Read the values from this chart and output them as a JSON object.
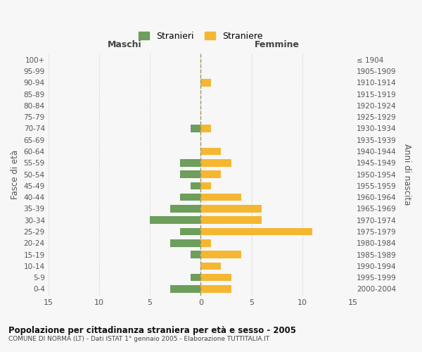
{
  "age_groups": [
    "0-4",
    "5-9",
    "10-14",
    "15-19",
    "20-24",
    "25-29",
    "30-34",
    "35-39",
    "40-44",
    "45-49",
    "50-54",
    "55-59",
    "60-64",
    "65-69",
    "70-74",
    "75-79",
    "80-84",
    "85-89",
    "90-94",
    "95-99",
    "100+"
  ],
  "birth_years": [
    "2000-2004",
    "1995-1999",
    "1990-1994",
    "1985-1989",
    "1980-1984",
    "1975-1979",
    "1970-1974",
    "1965-1969",
    "1960-1964",
    "1955-1959",
    "1950-1954",
    "1945-1949",
    "1940-1944",
    "1935-1939",
    "1930-1934",
    "1925-1929",
    "1920-1924",
    "1915-1919",
    "1910-1914",
    "1905-1909",
    "≤ 1904"
  ],
  "maschi": [
    3,
    1,
    0,
    1,
    3,
    2,
    5,
    3,
    2,
    1,
    2,
    2,
    0,
    0,
    1,
    0,
    0,
    0,
    0,
    0,
    0
  ],
  "femmine": [
    3,
    3,
    2,
    4,
    1,
    11,
    6,
    6,
    4,
    1,
    2,
    3,
    2,
    0,
    1,
    0,
    0,
    0,
    1,
    0,
    0
  ],
  "color_maschi": "#6d9e5b",
  "color_femmine": "#f5b731",
  "xlim": 15,
  "title": "Popolazione per cittadinanza straniera per età e sesso - 2005",
  "subtitle": "COMUNE DI NORMA (LT) - Dati ISTAT 1° gennaio 2005 - Elaborazione TUTTITALIA.IT",
  "ylabel_left": "Fasce di età",
  "ylabel_right": "Anni di nascita",
  "xlabel_left": "Maschi",
  "xlabel_right": "Femmine",
  "legend_maschi": "Stranieri",
  "legend_femmine": "Straniere",
  "bg_color": "#f7f7f7",
  "grid_color": "#cccccc",
  "dashed_line_color": "#999966"
}
